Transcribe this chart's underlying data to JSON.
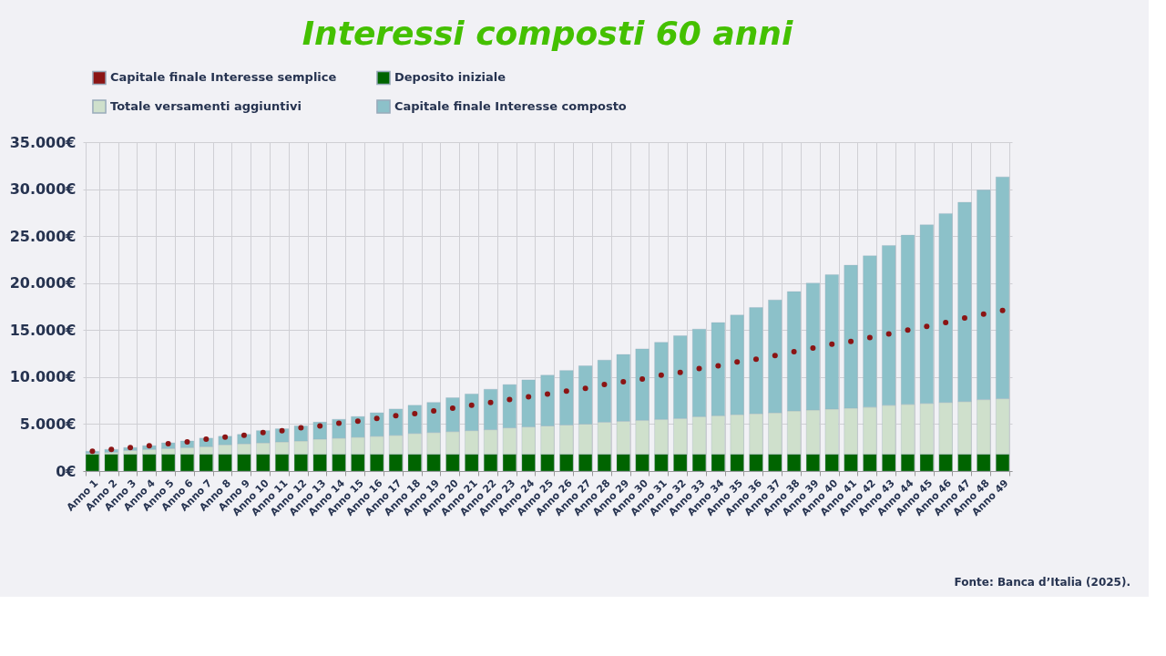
{
  "chart_data": {
    "type": "bar",
    "title": "Interessi composti 60 anni",
    "categories": [
      "Anno 1",
      "Anno 2",
      "Anno 3",
      "Anno 4",
      "Anno 5",
      "Anno 6",
      "Anno 7",
      "Anno 8",
      "Anno 9",
      "Anno 10",
      "Anno 11",
      "Anno 12",
      "Anno 13",
      "Anno 14",
      "Anno 15",
      "Anno 16",
      "Anno 17",
      "Anno 18",
      "Anno 19",
      "Anno 20",
      "Anno 21",
      "Anno 22",
      "Anno 23",
      "Anno 24",
      "Anno 25",
      "Anno 26",
      "Anno 27",
      "Anno 28",
      "Anno 29",
      "Anno 30",
      "Anno 31",
      "Anno 32",
      "Anno 33",
      "Anno 34",
      "Anno 35",
      "Anno 36",
      "Anno 37",
      "Anno 38",
      "Anno 39",
      "Anno 40",
      "Anno 41",
      "Anno 42",
      "Anno 43",
      "Anno 44",
      "Anno 45",
      "Anno 46",
      "Anno 47",
      "Anno 48",
      "Anno 49"
    ],
    "stacked": true,
    "series": [
      {
        "name": "Capitale finale Interesse semplice",
        "type": "scatter",
        "color": "#8b1414",
        "values": [
          2100,
          2300,
          2500,
          2700,
          2900,
          3100,
          3400,
          3600,
          3800,
          4100,
          4300,
          4600,
          4800,
          5100,
          5300,
          5600,
          5900,
          6100,
          6400,
          6700,
          7000,
          7300,
          7600,
          7900,
          8200,
          8500,
          8800,
          9200,
          9500,
          9800,
          10200,
          10500,
          10900,
          11200,
          11600,
          11900,
          12300,
          12700,
          13100,
          13500,
          13800,
          14200,
          14600,
          15000,
          15400,
          15800,
          16300,
          16700,
          17100
        ]
      },
      {
        "name": "Deposito iniziale",
        "color": "#006400",
        "values": [
          1800,
          1800,
          1800,
          1800,
          1800,
          1800,
          1800,
          1800,
          1800,
          1800,
          1800,
          1800,
          1800,
          1800,
          1800,
          1800,
          1800,
          1800,
          1800,
          1800,
          1800,
          1800,
          1800,
          1800,
          1800,
          1800,
          1800,
          1800,
          1800,
          1800,
          1800,
          1800,
          1800,
          1800,
          1800,
          1800,
          1800,
          1800,
          1800,
          1800,
          1800,
          1800,
          1800,
          1800,
          1800,
          1800,
          1800,
          1800,
          1800
        ]
      },
      {
        "name": "Totale versamenti aggiuntivi",
        "color": "#cfe0cc",
        "values": [
          100,
          200,
          400,
          500,
          600,
          700,
          800,
          1000,
          1100,
          1200,
          1300,
          1400,
          1600,
          1700,
          1800,
          1900,
          2000,
          2200,
          2300,
          2400,
          2500,
          2600,
          2800,
          2900,
          3000,
          3100,
          3200,
          3400,
          3500,
          3600,
          3700,
          3800,
          4000,
          4100,
          4200,
          4300,
          4400,
          4600,
          4700,
          4800,
          4900,
          5000,
          5200,
          5300,
          5400,
          5500,
          5600,
          5800,
          5900
        ]
      },
      {
        "name": "Capitale finale Interesse composto",
        "color": "#8cc1c9",
        "values": [
          200,
          300,
          300,
          400,
          600,
          700,
          900,
          900,
          1000,
          1300,
          1400,
          1600,
          1800,
          2000,
          2200,
          2500,
          2800,
          3000,
          3200,
          3600,
          3900,
          4300,
          4600,
          5000,
          5400,
          5800,
          6200,
          6600,
          7100,
          7600,
          8200,
          8800,
          9300,
          9900,
          10600,
          11300,
          12000,
          12700,
          13500,
          14300,
          15200,
          16100,
          17000,
          18000,
          19000,
          20100,
          21200,
          22300,
          23600
        ]
      }
    ],
    "ylim": [
      0,
      35000
    ],
    "yticks": [
      {
        "value": 0,
        "label": "0€"
      },
      {
        "value": 5000,
        "label": "5.000€"
      },
      {
        "value": 10000,
        "label": "10.000€"
      },
      {
        "value": 15000,
        "label": "15.000€"
      },
      {
        "value": 20000,
        "label": "20.000€"
      },
      {
        "value": 25000,
        "label": "25.000€"
      },
      {
        "value": 30000,
        "label": "30.000€"
      },
      {
        "value": 35000,
        "label": "35.000€"
      }
    ],
    "grid": true,
    "legend": "top",
    "marker": "circle",
    "annotations": [
      "Fonte: Banca d’Italia (2025)."
    ]
  }
}
